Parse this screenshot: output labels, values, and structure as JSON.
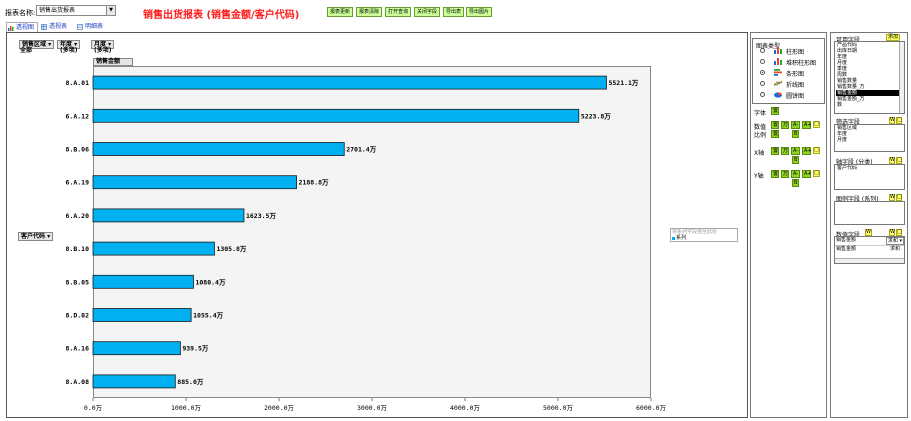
{
  "header": {
    "report_label": "报表名称:",
    "report_select": "销售出货报表",
    "title": "销售出货报表 (销售金额/客户代码)",
    "buttons": [
      "报表更新",
      "报表清除",
      "打开查询",
      "关闭字段",
      "导出表",
      "导出图片"
    ]
  },
  "tabs": [
    "透视图",
    "透视表",
    "明细表"
  ],
  "pivot": {
    "filter1_label": "销售区域",
    "filter1_value": "全部",
    "filter2_label": "年度",
    "filter2_value": "(多项)",
    "filter3_label": "月度",
    "filter3_value": "(多项)",
    "value_field": "销售金额",
    "row_field": "客户代码",
    "legend_drop_hint": "将系列字段拖至此处",
    "legend_entry": "系列"
  },
  "chart_data": {
    "type": "bar",
    "orientation": "horizontal",
    "categories": [
      "8.A.01",
      "6.A.12",
      "8.B.06",
      "6.A.19",
      "6.A.20",
      "8.B.10",
      "8.B.05",
      "8.D.02",
      "8.A.16",
      "8.A.08"
    ],
    "values": [
      5521.1,
      5223.8,
      2701.4,
      2188.8,
      1623.5,
      1305.8,
      1080.4,
      1055.4,
      939.5,
      885.0
    ],
    "value_labels": [
      "5521.1万",
      "5223.8万",
      "2701.4万",
      "2188.8万",
      "1623.5万",
      "1305.8万",
      "1080.4万",
      "1055.4万",
      "939.5万",
      "885.0万"
    ],
    "xlim": [
      0,
      6000
    ],
    "ticks": [
      "0.0万",
      "1000.0万",
      "2000.0万",
      "3000.0万",
      "4000.0万",
      "5000.0万",
      "6000.0万"
    ],
    "bar_color": "#00b0f0",
    "grid": false
  },
  "chart_panel": {
    "title": "图表类型",
    "types": [
      {
        "label": "柱形图",
        "checked": false
      },
      {
        "label": "堆积柱形图",
        "checked": false
      },
      {
        "label": "条形图",
        "checked": true
      },
      {
        "label": "折线图",
        "checked": false
      },
      {
        "label": "圆饼图",
        "checked": false
      }
    ],
    "font_label": "字体",
    "font_btn": "置",
    "data_label": "数值",
    "ratio_label": "比例",
    "x_label": "X轴",
    "y_label": "Y轴",
    "btn_set": "置",
    "btn_wan": "万",
    "btn_aminus": "A-",
    "btn_aplus": "A+",
    "btn_b": "B",
    "btn_box": "□"
  },
  "fields_panel": {
    "available_title": "可用字段",
    "add_btn": "添加",
    "available": [
      "产品代码",
      "出库日期",
      "年度",
      "月度",
      "季度",
      "周数",
      "销售数量",
      "销售数量_万",
      "销售金额",
      "销售金额_万",
      "数"
    ],
    "available_selected": "销售金额",
    "filter_title": "筛选字段",
    "filters": [
      "销售区域",
      "年度",
      "月度"
    ],
    "axis_title": "轴字段 (分类)",
    "axis": [
      "客户代码"
    ],
    "legend_title": "图例字段 (系列)",
    "value_title": "数值字段",
    "value_name": "销售金额",
    "value_agg": "求和",
    "value_row_name": "销售金额",
    "value_row_agg": "求和",
    "btn_w": "W",
    "btn_box": "□",
    "btn_e": "E"
  }
}
